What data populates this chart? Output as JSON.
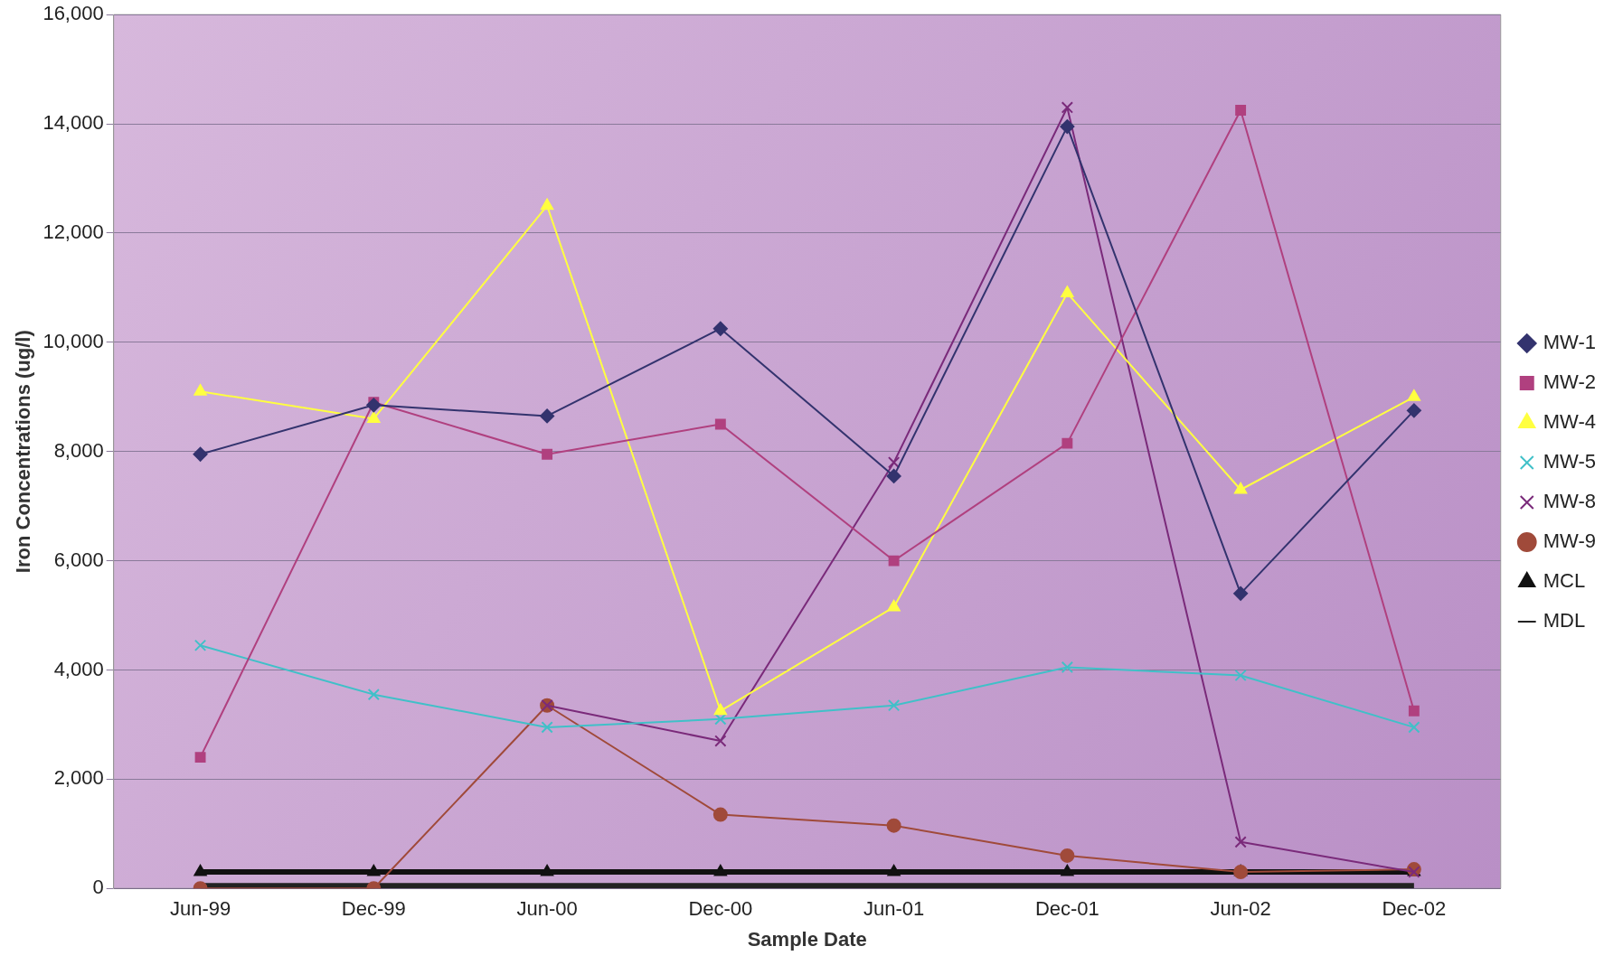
{
  "chart_data": {
    "type": "line",
    "xlabel": "Sample Date",
    "ylabel": "Iron Concentrations (ug/l)",
    "categories": [
      "Jun-99",
      "Dec-99",
      "Jun-00",
      "Dec-00",
      "Jun-01",
      "Dec-01",
      "Jun-02",
      "Dec-02"
    ],
    "ylim": [
      0,
      16000
    ],
    "yticks": [
      {
        "value": 0,
        "label": "0"
      },
      {
        "value": 2000,
        "label": "2,000"
      },
      {
        "value": 4000,
        "label": "4,000"
      },
      {
        "value": 6000,
        "label": "6,000"
      },
      {
        "value": 8000,
        "label": "8,000"
      },
      {
        "value": 10000,
        "label": "10,000"
      },
      {
        "value": 12000,
        "label": "12,000"
      },
      {
        "value": 14000,
        "label": "14,000"
      },
      {
        "value": 16000,
        "label": "16,000"
      }
    ],
    "grid": "y",
    "legend": "right",
    "series": [
      {
        "name": "MW-1",
        "color": "#33336e",
        "marker": "diamond",
        "values": [
          7950,
          8850,
          8650,
          10250,
          7550,
          13950,
          5400,
          8750
        ]
      },
      {
        "name": "MW-2",
        "color": "#b0407f",
        "marker": "square",
        "values": [
          2400,
          8900,
          7950,
          8500,
          6000,
          8150,
          14250,
          3250
        ]
      },
      {
        "name": "MW-4",
        "color": "#ffff40",
        "marker": "triangle",
        "values": [
          9100,
          8600,
          12500,
          3250,
          5150,
          10900,
          7300,
          9000
        ]
      },
      {
        "name": "MW-5",
        "color": "#40c0c8",
        "marker": "cross",
        "values": [
          4450,
          3550,
          2950,
          3100,
          3350,
          4050,
          3900,
          2950
        ]
      },
      {
        "name": "MW-8",
        "color": "#7a2a7a",
        "marker": "cross",
        "values": [
          null,
          null,
          3350,
          2700,
          7800,
          14300,
          850,
          300
        ]
      },
      {
        "name": "MW-9",
        "color": "#a04a3a",
        "marker": "circle",
        "values": [
          0,
          0,
          3350,
          1350,
          1150,
          600,
          300,
          350
        ]
      },
      {
        "name": "MCL",
        "color": "#111111",
        "marker": "triangle",
        "values": [
          300,
          300,
          300,
          300,
          300,
          300,
          300,
          300
        ]
      },
      {
        "name": "MDL",
        "color": "#222222",
        "marker": "none",
        "values": [
          50,
          50,
          50,
          50,
          50,
          50,
          50,
          50
        ]
      }
    ]
  }
}
